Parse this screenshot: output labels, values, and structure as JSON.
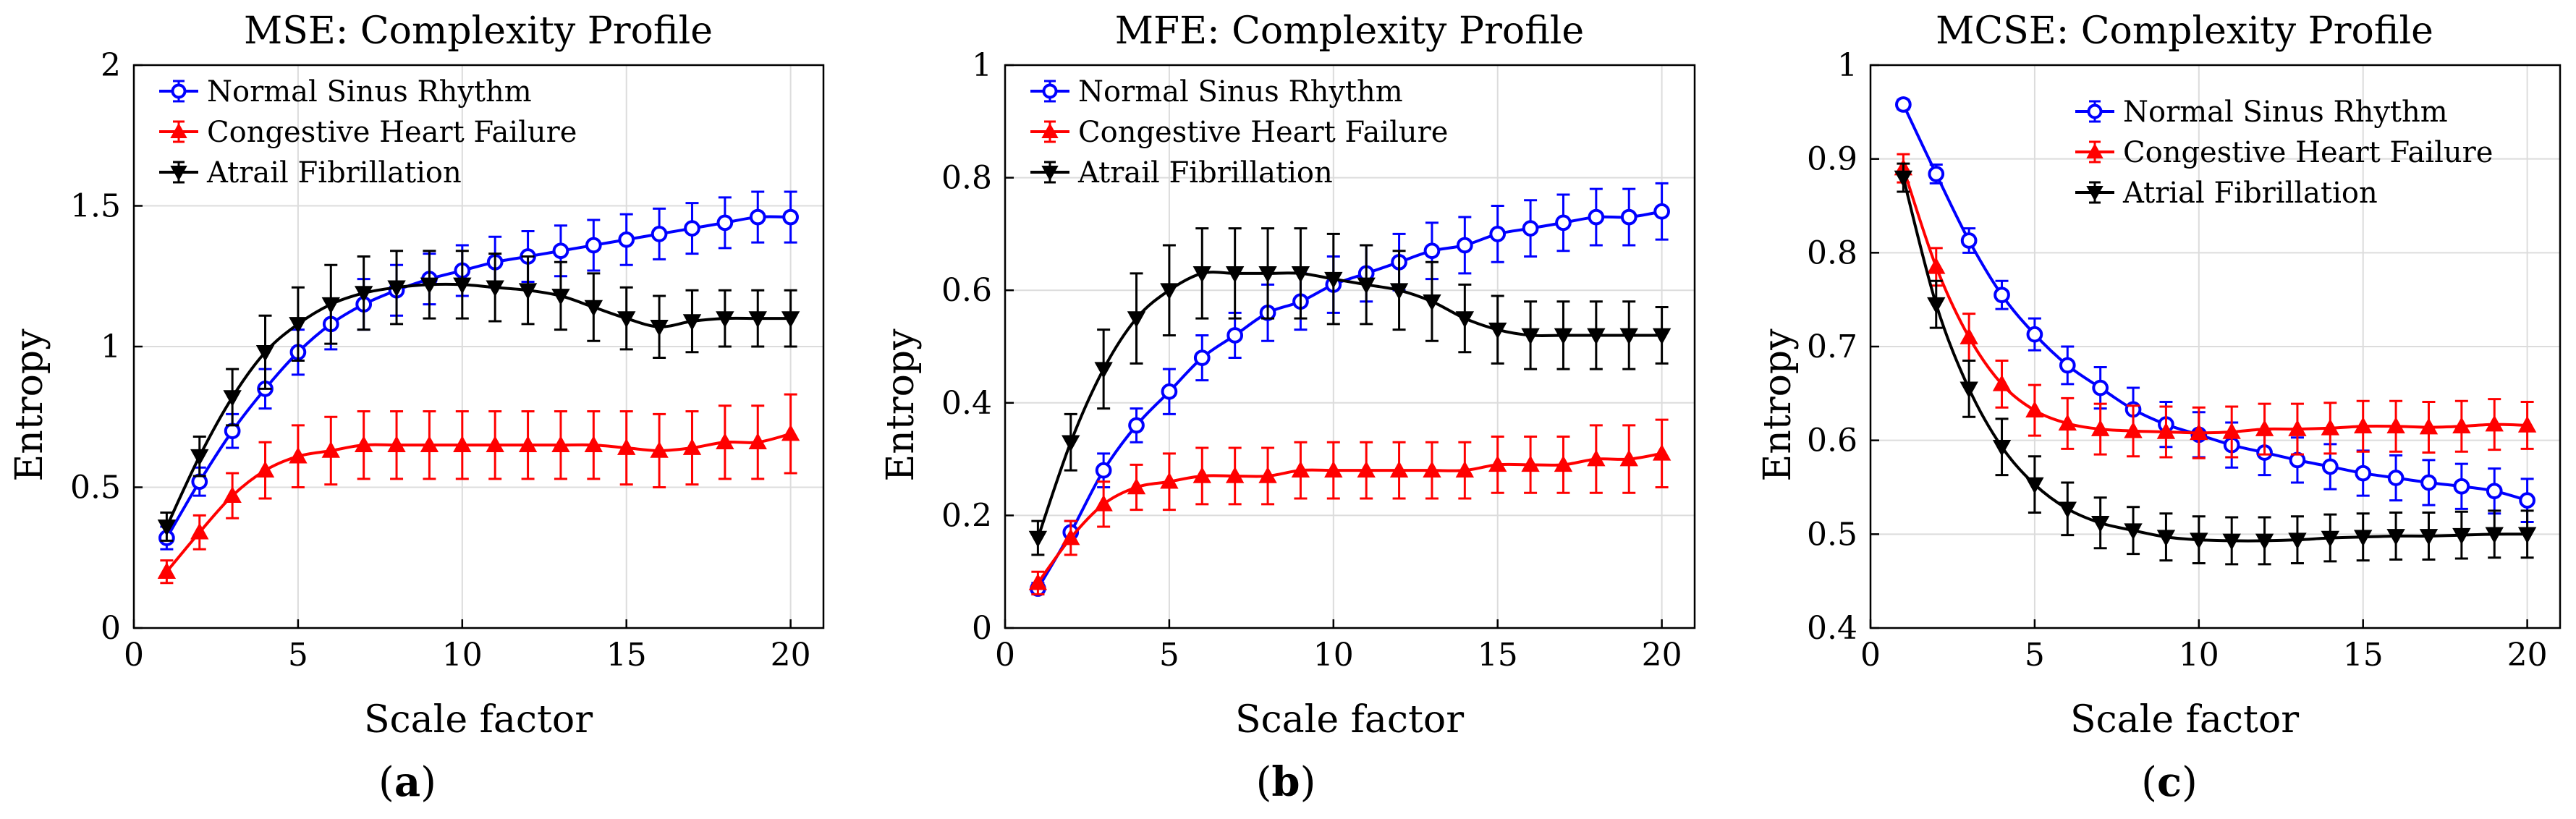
{
  "chart_data": [
    {
      "type": "line",
      "panel_label": "a",
      "title": "MSE: Complexity Profile",
      "xlabel": "Scale factor",
      "ylabel": "Entropy",
      "xlim": [
        0,
        21
      ],
      "ylim": [
        0,
        2
      ],
      "xticks": [
        0,
        5,
        10,
        15,
        20
      ],
      "xtick_labels": [
        "0",
        "5",
        "10",
        "15",
        "20"
      ],
      "yticks": [
        0,
        0.5,
        1,
        1.5,
        2
      ],
      "ytick_labels": [
        "0",
        "0.5",
        "1",
        "1.5",
        "2"
      ],
      "grid": true,
      "legend_position": "top-left",
      "x": [
        1,
        2,
        3,
        4,
        5,
        6,
        7,
        8,
        9,
        10,
        11,
        12,
        13,
        14,
        15,
        16,
        17,
        18,
        19,
        20
      ],
      "series": [
        {
          "name": "Normal Sinus Rhythm",
          "color": "#0000ff",
          "marker": "circle",
          "values": [
            0.32,
            0.52,
            0.7,
            0.85,
            0.98,
            1.08,
            1.15,
            1.2,
            1.24,
            1.27,
            1.3,
            1.32,
            1.34,
            1.36,
            1.38,
            1.4,
            1.42,
            1.44,
            1.46,
            1.46
          ],
          "errors": [
            0.04,
            0.05,
            0.06,
            0.07,
            0.08,
            0.09,
            0.09,
            0.09,
            0.09,
            0.09,
            0.09,
            0.09,
            0.09,
            0.09,
            0.09,
            0.09,
            0.09,
            0.09,
            0.09,
            0.09
          ]
        },
        {
          "name": "Congestive Heart Failure",
          "color": "#ff0000",
          "marker": "triangle-up",
          "values": [
            0.2,
            0.34,
            0.47,
            0.56,
            0.61,
            0.63,
            0.65,
            0.65,
            0.65,
            0.65,
            0.65,
            0.65,
            0.65,
            0.65,
            0.64,
            0.63,
            0.64,
            0.66,
            0.66,
            0.69
          ],
          "errors": [
            0.04,
            0.06,
            0.08,
            0.1,
            0.11,
            0.12,
            0.12,
            0.12,
            0.12,
            0.12,
            0.12,
            0.12,
            0.12,
            0.12,
            0.13,
            0.13,
            0.13,
            0.13,
            0.13,
            0.14
          ]
        },
        {
          "name": "Atrail Fibrillation",
          "color": "#000000",
          "marker": "triangle-down",
          "values": [
            0.36,
            0.61,
            0.82,
            0.98,
            1.08,
            1.15,
            1.19,
            1.21,
            1.22,
            1.22,
            1.21,
            1.2,
            1.18,
            1.14,
            1.1,
            1.07,
            1.09,
            1.1,
            1.1,
            1.1
          ],
          "errors": [
            0.05,
            0.07,
            0.1,
            0.13,
            0.13,
            0.14,
            0.13,
            0.13,
            0.12,
            0.12,
            0.12,
            0.12,
            0.12,
            0.12,
            0.11,
            0.11,
            0.11,
            0.1,
            0.1,
            0.1
          ]
        }
      ]
    },
    {
      "type": "line",
      "panel_label": "b",
      "title": "MFE: Complexity Profile",
      "xlabel": "Scale factor",
      "ylabel": "Entropy",
      "xlim": [
        0,
        21
      ],
      "ylim": [
        0,
        1
      ],
      "xticks": [
        0,
        5,
        10,
        15,
        20
      ],
      "xtick_labels": [
        "0",
        "5",
        "10",
        "15",
        "20"
      ],
      "yticks": [
        0,
        0.2,
        0.4,
        0.6,
        0.8,
        1
      ],
      "ytick_labels": [
        "0",
        "0.2",
        "0.4",
        "0.6",
        "0.8",
        "1"
      ],
      "grid": true,
      "legend_position": "top-left",
      "x": [
        1,
        2,
        3,
        4,
        5,
        6,
        7,
        8,
        9,
        10,
        11,
        12,
        13,
        14,
        15,
        16,
        17,
        18,
        19,
        20
      ],
      "series": [
        {
          "name": "Normal Sinus Rhythm",
          "color": "#0000ff",
          "marker": "circle",
          "values": [
            0.07,
            0.17,
            0.28,
            0.36,
            0.42,
            0.48,
            0.52,
            0.56,
            0.58,
            0.61,
            0.63,
            0.65,
            0.67,
            0.68,
            0.7,
            0.71,
            0.72,
            0.73,
            0.73,
            0.74
          ],
          "errors": [
            0.01,
            0.02,
            0.03,
            0.03,
            0.04,
            0.04,
            0.04,
            0.05,
            0.05,
            0.05,
            0.05,
            0.05,
            0.05,
            0.05,
            0.05,
            0.05,
            0.05,
            0.05,
            0.05,
            0.05
          ]
        },
        {
          "name": "Congestive Heart Failure",
          "color": "#ff0000",
          "marker": "triangle-up",
          "values": [
            0.08,
            0.16,
            0.22,
            0.25,
            0.26,
            0.27,
            0.27,
            0.27,
            0.28,
            0.28,
            0.28,
            0.28,
            0.28,
            0.28,
            0.29,
            0.29,
            0.29,
            0.3,
            0.3,
            0.31
          ],
          "errors": [
            0.02,
            0.03,
            0.04,
            0.04,
            0.05,
            0.05,
            0.05,
            0.05,
            0.05,
            0.05,
            0.05,
            0.05,
            0.05,
            0.05,
            0.05,
            0.05,
            0.05,
            0.06,
            0.06,
            0.06
          ]
        },
        {
          "name": "Atrail Fibrillation",
          "color": "#000000",
          "marker": "triangle-down",
          "values": [
            0.16,
            0.33,
            0.46,
            0.55,
            0.6,
            0.63,
            0.63,
            0.63,
            0.63,
            0.62,
            0.61,
            0.6,
            0.58,
            0.55,
            0.53,
            0.52,
            0.52,
            0.52,
            0.52,
            0.52
          ],
          "errors": [
            0.03,
            0.05,
            0.07,
            0.08,
            0.08,
            0.08,
            0.08,
            0.08,
            0.08,
            0.08,
            0.07,
            0.07,
            0.07,
            0.06,
            0.06,
            0.06,
            0.06,
            0.06,
            0.06,
            0.05
          ]
        }
      ]
    },
    {
      "type": "line",
      "panel_label": "c",
      "title": "MCSE: Complexity Profile",
      "xlabel": "Scale factor",
      "ylabel": "Entropy",
      "xlim": [
        0,
        21
      ],
      "ylim": [
        0.4,
        1
      ],
      "xticks": [
        0,
        5,
        10,
        15,
        20
      ],
      "xtick_labels": [
        "0",
        "5",
        "10",
        "15",
        "20"
      ],
      "yticks": [
        0.4,
        0.5,
        0.6,
        0.7,
        0.8,
        0.9,
        1
      ],
      "ytick_labels": [
        "0.4",
        "0.5",
        "0.6",
        "0.7",
        "0.8",
        "0.9",
        "1"
      ],
      "grid": true,
      "legend_position": "top-right",
      "x": [
        1,
        2,
        3,
        4,
        5,
        6,
        7,
        8,
        9,
        10,
        11,
        12,
        13,
        14,
        15,
        16,
        17,
        18,
        19,
        20
      ],
      "series": [
        {
          "name": "Normal Sinus Rhythm",
          "color": "#0000ff",
          "marker": "circle",
          "values": [
            0.958,
            0.884,
            0.813,
            0.755,
            0.713,
            0.68,
            0.656,
            0.633,
            0.617,
            0.606,
            0.595,
            0.587,
            0.579,
            0.572,
            0.565,
            0.56,
            0.555,
            0.551,
            0.546,
            0.536
          ],
          "errors": [
            0.005,
            0.01,
            0.013,
            0.015,
            0.017,
            0.02,
            0.022,
            0.023,
            0.024,
            0.024,
            0.024,
            0.024,
            0.024,
            0.024,
            0.024,
            0.024,
            0.024,
            0.024,
            0.024,
            0.023
          ]
        },
        {
          "name": "Congestive Heart Failure",
          "color": "#ff0000",
          "marker": "triangle-up",
          "values": [
            0.89,
            0.785,
            0.71,
            0.66,
            0.632,
            0.618,
            0.612,
            0.61,
            0.609,
            0.608,
            0.609,
            0.612,
            0.612,
            0.613,
            0.615,
            0.615,
            0.614,
            0.615,
            0.617,
            0.616
          ],
          "errors": [
            0.015,
            0.02,
            0.025,
            0.025,
            0.027,
            0.027,
            0.027,
            0.027,
            0.027,
            0.027,
            0.027,
            0.027,
            0.027,
            0.027,
            0.027,
            0.027,
            0.027,
            0.027,
            0.027,
            0.025
          ]
        },
        {
          "name": "Atrial Fibrillation",
          "color": "#000000",
          "marker": "triangle-down",
          "values": [
            0.88,
            0.745,
            0.655,
            0.593,
            0.553,
            0.527,
            0.512,
            0.504,
            0.497,
            0.494,
            0.493,
            0.493,
            0.494,
            0.496,
            0.497,
            0.498,
            0.498,
            0.499,
            0.5,
            0.5
          ],
          "errors": [
            0.015,
            0.025,
            0.03,
            0.03,
            0.03,
            0.028,
            0.027,
            0.025,
            0.025,
            0.025,
            0.025,
            0.025,
            0.025,
            0.025,
            0.025,
            0.025,
            0.025,
            0.025,
            0.025,
            0.025
          ]
        }
      ]
    }
  ]
}
